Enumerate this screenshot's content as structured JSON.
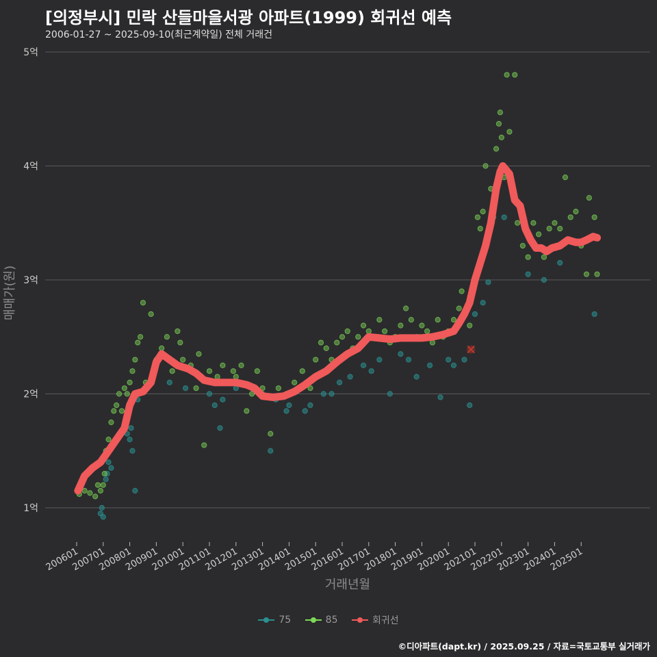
{
  "title": "[의정부시] 민락 산들마을서광 아파트(1999) 회귀선 예측",
  "subtitle": "2006-01-27 ~ 2025-09-10(최근계약일) 전체 거래건",
  "footer": "©디아파트(dapt.kr) / 2025.09.25 / 자료=국토교통부 실거래가",
  "colors": {
    "background": "#2b2b2d",
    "grid": "#5a5a5c",
    "s75": "#2a8f8f",
    "s85": "#7ed957",
    "regression": "#f05a5a"
  },
  "legend": [
    {
      "label": "75",
      "color": "#2a8f8f"
    },
    {
      "label": "85",
      "color": "#7ed957"
    },
    {
      "label": "회귀선",
      "color": "#f05a5a"
    }
  ],
  "chart_data": {
    "type": "scatter",
    "xlabel": "거래년월",
    "ylabel": "매매가(원)",
    "xlim": [
      2006.0,
      2025.9
    ],
    "ylim": [
      0.9,
      5.0
    ],
    "y_ticks": [
      1,
      2,
      3,
      4,
      5
    ],
    "y_tick_labels": [
      "1억",
      "2억",
      "3억",
      "4억",
      "5억"
    ],
    "x_ticks": [
      2006,
      2007,
      2008,
      2009,
      2010,
      2011,
      2012,
      2013,
      2014,
      2015,
      2016,
      2017,
      2018,
      2019,
      2020,
      2021,
      2022,
      2023,
      2024,
      2025
    ],
    "x_tick_labels": [
      "200601",
      "200701",
      "200801",
      "200901",
      "201001",
      "201101",
      "201201",
      "201301",
      "201401",
      "201501",
      "201601",
      "201701",
      "201801",
      "201901",
      "202001",
      "202101",
      "202201",
      "202301",
      "202401",
      "202501"
    ],
    "grid": "horizontal",
    "legend_position": "bottom",
    "series": [
      {
        "name": "75",
        "points": [
          [
            2006.9,
            0.95
          ],
          [
            2006.95,
            1.0
          ],
          [
            2007.0,
            0.92
          ],
          [
            2007.1,
            1.25
          ],
          [
            2007.15,
            1.3
          ],
          [
            2007.2,
            1.4
          ],
          [
            2007.3,
            1.35
          ],
          [
            2007.9,
            1.65
          ],
          [
            2008.0,
            1.6
          ],
          [
            2008.05,
            1.7
          ],
          [
            2008.1,
            1.5
          ],
          [
            2008.2,
            1.15
          ],
          [
            2008.3,
            1.95
          ],
          [
            2009.5,
            2.1
          ],
          [
            2010.1,
            2.05
          ],
          [
            2011.0,
            2.0
          ],
          [
            2011.2,
            1.9
          ],
          [
            2011.4,
            1.7
          ],
          [
            2011.5,
            1.95
          ],
          [
            2012.0,
            2.05
          ],
          [
            2013.0,
            2.0
          ],
          [
            2013.3,
            1.5
          ],
          [
            2013.5,
            1.95
          ],
          [
            2013.9,
            1.85
          ],
          [
            2014.0,
            1.9
          ],
          [
            2014.6,
            1.85
          ],
          [
            2014.8,
            1.9
          ],
          [
            2015.3,
            2.0
          ],
          [
            2015.6,
            2.0
          ],
          [
            2015.9,
            2.1
          ],
          [
            2016.3,
            2.15
          ],
          [
            2016.8,
            2.25
          ],
          [
            2017.1,
            2.2
          ],
          [
            2017.4,
            2.3
          ],
          [
            2017.8,
            2.0
          ],
          [
            2018.2,
            2.35
          ],
          [
            2018.5,
            2.3
          ],
          [
            2018.8,
            2.15
          ],
          [
            2019.3,
            2.25
          ],
          [
            2019.7,
            1.97
          ],
          [
            2020.0,
            2.3
          ],
          [
            2020.2,
            2.25
          ],
          [
            2020.6,
            2.3
          ],
          [
            2020.8,
            1.9
          ],
          [
            2021.0,
            2.7
          ],
          [
            2021.3,
            2.8
          ],
          [
            2021.5,
            2.98
          ],
          [
            2021.7,
            3.55
          ],
          [
            2022.1,
            3.55
          ],
          [
            2023.0,
            3.05
          ],
          [
            2023.6,
            3.0
          ],
          [
            2024.2,
            3.15
          ],
          [
            2025.5,
            2.7
          ]
        ]
      },
      {
        "name": "85",
        "points": [
          [
            2006.1,
            1.12
          ],
          [
            2006.3,
            1.15
          ],
          [
            2006.5,
            1.13
          ],
          [
            2006.7,
            1.1
          ],
          [
            2006.8,
            1.2
          ],
          [
            2006.9,
            1.15
          ],
          [
            2007.0,
            1.2
          ],
          [
            2007.05,
            1.3
          ],
          [
            2007.1,
            1.5
          ],
          [
            2007.2,
            1.6
          ],
          [
            2007.3,
            1.75
          ],
          [
            2007.4,
            1.85
          ],
          [
            2007.5,
            1.9
          ],
          [
            2007.6,
            2.0
          ],
          [
            2007.7,
            1.85
          ],
          [
            2007.8,
            2.05
          ],
          [
            2007.9,
            2.0
          ],
          [
            2008.0,
            2.1
          ],
          [
            2008.1,
            2.2
          ],
          [
            2008.2,
            2.3
          ],
          [
            2008.3,
            2.45
          ],
          [
            2008.4,
            2.5
          ],
          [
            2008.5,
            2.8
          ],
          [
            2008.6,
            2.1
          ],
          [
            2008.8,
            2.7
          ],
          [
            2009.0,
            2.3
          ],
          [
            2009.2,
            2.4
          ],
          [
            2009.4,
            2.5
          ],
          [
            2009.6,
            2.2
          ],
          [
            2009.8,
            2.55
          ],
          [
            2009.9,
            2.45
          ],
          [
            2010.0,
            2.3
          ],
          [
            2010.3,
            2.25
          ],
          [
            2010.5,
            2.05
          ],
          [
            2010.6,
            2.35
          ],
          [
            2010.8,
            1.55
          ],
          [
            2011.0,
            2.2
          ],
          [
            2011.3,
            2.15
          ],
          [
            2011.5,
            2.25
          ],
          [
            2011.7,
            2.1
          ],
          [
            2011.9,
            2.2
          ],
          [
            2012.0,
            2.15
          ],
          [
            2012.2,
            2.25
          ],
          [
            2012.4,
            1.85
          ],
          [
            2012.6,
            2.0
          ],
          [
            2012.8,
            2.2
          ],
          [
            2013.0,
            2.05
          ],
          [
            2013.3,
            1.65
          ],
          [
            2013.6,
            2.05
          ],
          [
            2013.9,
            2.0
          ],
          [
            2014.2,
            2.1
          ],
          [
            2014.5,
            2.2
          ],
          [
            2014.8,
            2.05
          ],
          [
            2015.0,
            2.3
          ],
          [
            2015.2,
            2.45
          ],
          [
            2015.4,
            2.4
          ],
          [
            2015.6,
            2.3
          ],
          [
            2015.8,
            2.45
          ],
          [
            2016.0,
            2.5
          ],
          [
            2016.2,
            2.55
          ],
          [
            2016.4,
            2.4
          ],
          [
            2016.6,
            2.5
          ],
          [
            2016.8,
            2.6
          ],
          [
            2017.0,
            2.55
          ],
          [
            2017.2,
            2.5
          ],
          [
            2017.4,
            2.65
          ],
          [
            2017.6,
            2.55
          ],
          [
            2017.8,
            2.45
          ],
          [
            2018.0,
            2.5
          ],
          [
            2018.2,
            2.6
          ],
          [
            2018.4,
            2.75
          ],
          [
            2018.6,
            2.65
          ],
          [
            2018.8,
            2.5
          ],
          [
            2019.0,
            2.6
          ],
          [
            2019.2,
            2.55
          ],
          [
            2019.4,
            2.45
          ],
          [
            2019.6,
            2.65
          ],
          [
            2019.8,
            2.5
          ],
          [
            2020.0,
            2.55
          ],
          [
            2020.2,
            2.65
          ],
          [
            2020.4,
            2.75
          ],
          [
            2020.5,
            2.9
          ],
          [
            2020.7,
            2.75
          ],
          [
            2020.8,
            2.6
          ],
          [
            2021.0,
            3.0
          ],
          [
            2021.1,
            3.55
          ],
          [
            2021.2,
            3.45
          ],
          [
            2021.3,
            3.6
          ],
          [
            2021.4,
            4.0
          ],
          [
            2021.6,
            3.8
          ],
          [
            2021.8,
            4.15
          ],
          [
            2021.9,
            4.37
          ],
          [
            2021.95,
            4.47
          ],
          [
            2022.0,
            4.25
          ],
          [
            2022.1,
            3.9
          ],
          [
            2022.2,
            4.8
          ],
          [
            2022.3,
            4.3
          ],
          [
            2022.5,
            4.8
          ],
          [
            2022.6,
            3.5
          ],
          [
            2022.8,
            3.3
          ],
          [
            2023.0,
            3.2
          ],
          [
            2023.2,
            3.5
          ],
          [
            2023.4,
            3.4
          ],
          [
            2023.6,
            3.2
          ],
          [
            2023.8,
            3.45
          ],
          [
            2024.0,
            3.5
          ],
          [
            2024.2,
            3.45
          ],
          [
            2024.4,
            3.9
          ],
          [
            2024.6,
            3.55
          ],
          [
            2024.8,
            3.6
          ],
          [
            2025.0,
            3.3
          ],
          [
            2025.2,
            3.05
          ],
          [
            2025.3,
            3.72
          ],
          [
            2025.5,
            3.55
          ],
          [
            2025.6,
            3.05
          ]
        ]
      }
    ],
    "regression": [
      [
        2006.05,
        1.15
      ],
      [
        2006.3,
        1.28
      ],
      [
        2006.6,
        1.35
      ],
      [
        2006.9,
        1.4
      ],
      [
        2007.2,
        1.5
      ],
      [
        2007.5,
        1.6
      ],
      [
        2007.8,
        1.7
      ],
      [
        2008.0,
        1.9
      ],
      [
        2008.2,
        2.0
      ],
      [
        2008.5,
        2.02
      ],
      [
        2008.8,
        2.1
      ],
      [
        2009.0,
        2.28
      ],
      [
        2009.2,
        2.35
      ],
      [
        2009.5,
        2.3
      ],
      [
        2009.8,
        2.25
      ],
      [
        2010.2,
        2.22
      ],
      [
        2010.5,
        2.18
      ],
      [
        2010.8,
        2.12
      ],
      [
        2011.2,
        2.1
      ],
      [
        2011.6,
        2.1
      ],
      [
        2012.0,
        2.1
      ],
      [
        2012.4,
        2.08
      ],
      [
        2012.7,
        2.05
      ],
      [
        2013.0,
        1.98
      ],
      [
        2013.4,
        1.97
      ],
      [
        2013.8,
        1.98
      ],
      [
        2014.2,
        2.02
      ],
      [
        2014.6,
        2.08
      ],
      [
        2015.0,
        2.15
      ],
      [
        2015.4,
        2.2
      ],
      [
        2015.8,
        2.28
      ],
      [
        2016.2,
        2.35
      ],
      [
        2016.6,
        2.4
      ],
      [
        2017.0,
        2.5
      ],
      [
        2017.4,
        2.49
      ],
      [
        2017.8,
        2.48
      ],
      [
        2018.2,
        2.49
      ],
      [
        2018.6,
        2.49
      ],
      [
        2019.0,
        2.49
      ],
      [
        2019.4,
        2.5
      ],
      [
        2019.8,
        2.52
      ],
      [
        2020.2,
        2.55
      ],
      [
        2020.4,
        2.62
      ],
      [
        2020.6,
        2.7
      ],
      [
        2020.8,
        2.8
      ],
      [
        2021.0,
        3.0
      ],
      [
        2021.2,
        3.15
      ],
      [
        2021.4,
        3.3
      ],
      [
        2021.6,
        3.5
      ],
      [
        2021.8,
        3.8
      ],
      [
        2021.95,
        3.95
      ],
      [
        2022.05,
        4.0
      ],
      [
        2022.3,
        3.93
      ],
      [
        2022.5,
        3.7
      ],
      [
        2022.7,
        3.65
      ],
      [
        2022.9,
        3.45
      ],
      [
        2023.1,
        3.35
      ],
      [
        2023.3,
        3.28
      ],
      [
        2023.5,
        3.28
      ],
      [
        2023.7,
        3.25
      ],
      [
        2023.9,
        3.28
      ],
      [
        2024.2,
        3.3
      ],
      [
        2024.5,
        3.35
      ],
      [
        2024.8,
        3.33
      ],
      [
        2025.0,
        3.33
      ],
      [
        2025.2,
        3.35
      ],
      [
        2025.45,
        3.38
      ],
      [
        2025.6,
        3.37
      ]
    ],
    "x_markers": [
      [
        2020.85,
        2.39
      ]
    ]
  }
}
